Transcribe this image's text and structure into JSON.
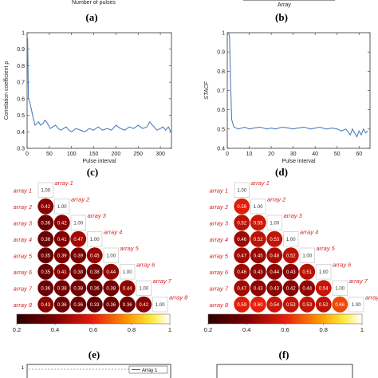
{
  "top_strip": {
    "left_xlabel": "Number of pulses",
    "right_xlabel": "Array"
  },
  "captions": {
    "a": "(a)",
    "b": "(b)",
    "c": "(c)",
    "d": "(d)",
    "e": "(e)",
    "f": "(f)"
  },
  "chart_data": [
    {
      "panel": "c",
      "type": "line",
      "xlabel": "Pulse interval",
      "ylabel": "Correlation coefficient ρ",
      "xlim": [
        0,
        325
      ],
      "ylim": [
        0.3,
        1.0
      ],
      "xticks": [
        0,
        50,
        100,
        150,
        200,
        250,
        300
      ],
      "yticks": [
        0.3,
        0.4,
        0.5,
        0.6,
        0.7,
        0.8,
        0.9,
        1
      ],
      "grid": false,
      "color": "#4f81bd",
      "x": [
        1,
        3,
        6,
        10,
        14,
        18,
        22,
        26,
        30,
        36,
        40,
        44,
        48,
        52,
        58,
        64,
        70,
        76,
        82,
        88,
        94,
        100,
        110,
        120,
        130,
        140,
        150,
        160,
        170,
        180,
        190,
        200,
        210,
        220,
        230,
        240,
        250,
        260,
        270,
        276,
        282,
        286,
        292,
        300,
        306,
        312,
        318,
        324
      ],
      "y": [
        0.97,
        0.6,
        0.58,
        0.53,
        0.48,
        0.44,
        0.45,
        0.46,
        0.44,
        0.45,
        0.47,
        0.46,
        0.44,
        0.42,
        0.43,
        0.44,
        0.42,
        0.41,
        0.42,
        0.43,
        0.41,
        0.4,
        0.42,
        0.41,
        0.4,
        0.42,
        0.41,
        0.43,
        0.41,
        0.42,
        0.41,
        0.44,
        0.42,
        0.41,
        0.43,
        0.42,
        0.44,
        0.42,
        0.43,
        0.46,
        0.44,
        0.43,
        0.41,
        0.42,
        0.43,
        0.41,
        0.43,
        0.4
      ]
    },
    {
      "panel": "d",
      "type": "line",
      "xlabel": "Pulse interval",
      "ylabel": "STACF",
      "xlim": [
        0,
        65
      ],
      "ylim": [
        0.4,
        1.0
      ],
      "xticks": [
        0,
        10,
        20,
        30,
        40,
        50,
        60
      ],
      "yticks": [
        0.4,
        0.5,
        0.6,
        0.7,
        0.8,
        0.9,
        1
      ],
      "grid": false,
      "color": "#4f81bd",
      "x": [
        0.5,
        1,
        1.5,
        2,
        3,
        5,
        8,
        10,
        12,
        15,
        18,
        20,
        22,
        25,
        28,
        30,
        32,
        35,
        38,
        40,
        42,
        45,
        48,
        50,
        52,
        54,
        56,
        57,
        58,
        59,
        60,
        61,
        62,
        63,
        64
      ],
      "y": [
        1.0,
        0.98,
        0.75,
        0.55,
        0.51,
        0.5,
        0.51,
        0.5,
        0.505,
        0.51,
        0.5,
        0.505,
        0.5,
        0.51,
        0.505,
        0.5,
        0.505,
        0.51,
        0.5,
        0.505,
        0.51,
        0.5,
        0.505,
        0.5,
        0.49,
        0.5,
        0.47,
        0.5,
        0.48,
        0.46,
        0.49,
        0.47,
        0.5,
        0.48,
        0.49
      ]
    },
    {
      "panel": "e",
      "type": "heatmap",
      "labels": [
        "array 1",
        "array 2",
        "array 3",
        "array 4",
        "array 5",
        "array 6",
        "array 7",
        "array 8"
      ],
      "colorbar": {
        "min": 0.2,
        "max": 1,
        "ticks": [
          "0.2",
          "0.4",
          "0.6",
          "0.8",
          "1"
        ]
      },
      "matrix": [
        [
          1.0
        ],
        [
          0.42,
          1.0
        ],
        [
          0.36,
          0.42,
          1.0
        ],
        [
          0.36,
          0.41,
          0.47,
          1.0
        ],
        [
          0.35,
          0.39,
          0.39,
          0.45,
          1.0
        ],
        [
          0.35,
          0.41,
          0.38,
          0.38,
          0.44,
          1.0
        ],
        [
          0.36,
          0.38,
          0.38,
          0.36,
          0.38,
          0.44,
          1.0
        ],
        [
          0.43,
          0.36,
          0.36,
          0.33,
          0.36,
          0.36,
          0.42,
          1.0
        ]
      ]
    },
    {
      "panel": "f",
      "type": "heatmap",
      "labels": [
        "array 1",
        "array 2",
        "array 3",
        "array 4",
        "array 5",
        "array 6",
        "array 7",
        "array 8"
      ],
      "colorbar": {
        "min": 0.2,
        "max": 1,
        "ticks": [
          "0.2",
          "0.4",
          "0.6",
          "0.8",
          "1"
        ]
      },
      "matrix": [
        [
          1.0
        ],
        [
          0.59,
          1.0
        ],
        [
          0.52,
          0.55,
          1.0
        ],
        [
          0.46,
          0.52,
          0.53,
          1.0
        ],
        [
          0.47,
          0.45,
          0.48,
          0.52,
          1.0
        ],
        [
          0.46,
          0.43,
          0.44,
          0.43,
          0.51,
          1.0
        ],
        [
          0.47,
          0.43,
          0.43,
          0.42,
          0.44,
          0.54,
          1.0
        ],
        [
          0.59,
          0.6,
          0.54,
          0.53,
          0.53,
          0.52,
          0.66,
          1.0
        ]
      ]
    }
  ],
  "bottom_strip": {
    "legend_label": "Array 1",
    "ytick": "1"
  }
}
